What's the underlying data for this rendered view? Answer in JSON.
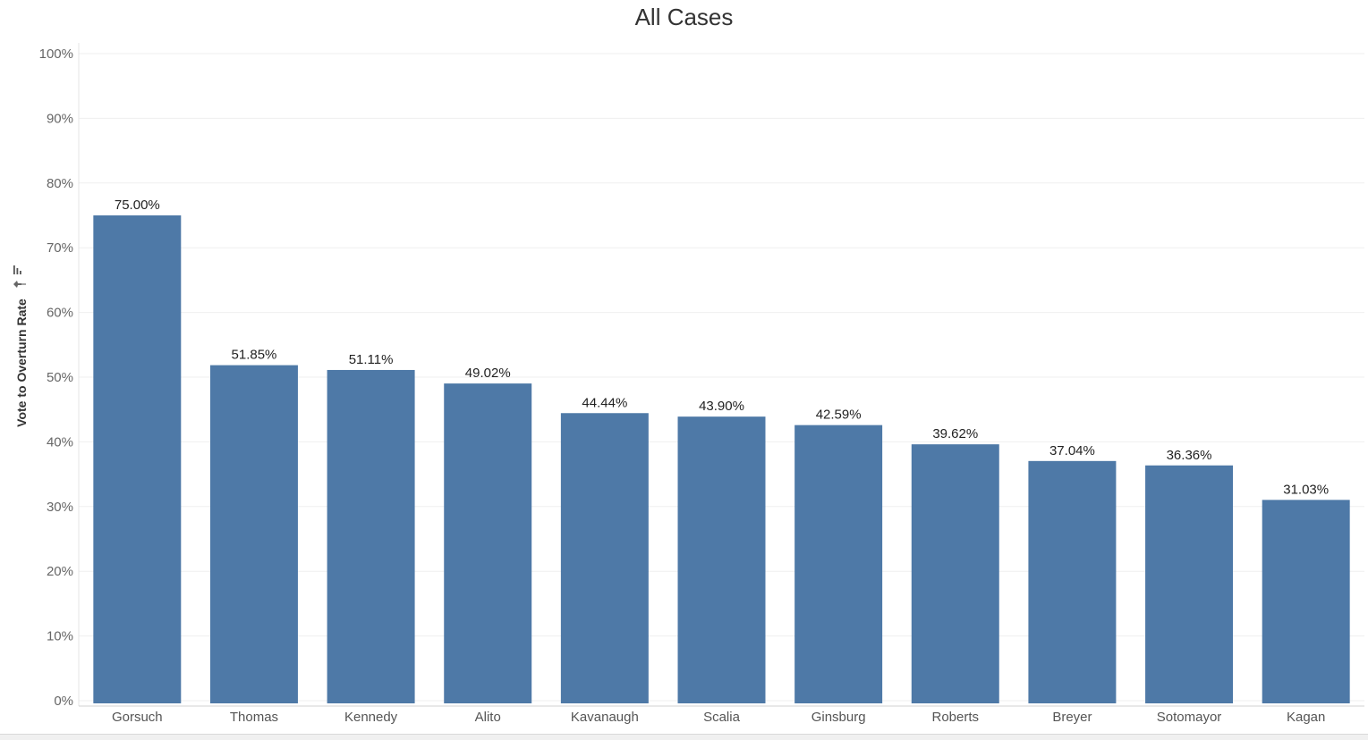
{
  "chart_data": {
    "type": "bar",
    "title": "All Cases",
    "xlabel": "",
    "ylabel": "Vote to Overturn Rate",
    "ylim": [
      0,
      100
    ],
    "yticks": [
      "0%",
      "10%",
      "20%",
      "30%",
      "40%",
      "50%",
      "60%",
      "70%",
      "80%",
      "90%",
      "100%"
    ],
    "categories": [
      "Gorsuch",
      "Thomas",
      "Kennedy",
      "Alito",
      "Kavanaugh",
      "Scalia",
      "Ginsburg",
      "Roberts",
      "Breyer",
      "Sotomayor",
      "Kagan"
    ],
    "values": [
      75.0,
      51.85,
      51.11,
      49.02,
      44.44,
      43.9,
      42.59,
      39.62,
      37.04,
      36.36,
      31.03
    ],
    "data_labels": [
      "75.00%",
      "51.85%",
      "51.11%",
      "49.02%",
      "44.44%",
      "43.90%",
      "42.59%",
      "39.62%",
      "37.04%",
      "36.36%",
      "31.03%"
    ],
    "bar_color": "#4e79a7",
    "grid": true
  }
}
